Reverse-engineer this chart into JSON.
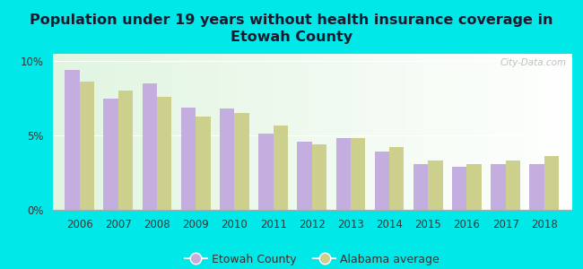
{
  "title": "Population under 19 years without health insurance coverage in\nEtowah County",
  "years": [
    2006,
    2007,
    2008,
    2009,
    2010,
    2011,
    2012,
    2013,
    2014,
    2015,
    2016,
    2017,
    2018
  ],
  "etowah": [
    9.4,
    7.5,
    8.5,
    6.9,
    6.8,
    5.1,
    4.6,
    4.8,
    3.9,
    3.1,
    2.9,
    3.1,
    3.1
  ],
  "alabama": [
    8.6,
    8.0,
    7.6,
    6.3,
    6.5,
    5.7,
    4.4,
    4.8,
    4.2,
    3.3,
    3.1,
    3.3,
    3.6
  ],
  "etowah_color": "#c4aee0",
  "alabama_color": "#cdd08c",
  "bg_outer": "#00e8e8",
  "bg_plot": "#e8f5e8",
  "ylim": [
    0,
    10.5
  ],
  "yticks": [
    0,
    5,
    10
  ],
  "ytick_labels": [
    "0%",
    "5%",
    "10%"
  ],
  "bar_width": 0.38,
  "title_fontsize": 11.5,
  "title_color": "#1a1a2e",
  "legend_etowah": "Etowah County",
  "legend_alabama": "Alabama average",
  "watermark": "City-Data.com"
}
